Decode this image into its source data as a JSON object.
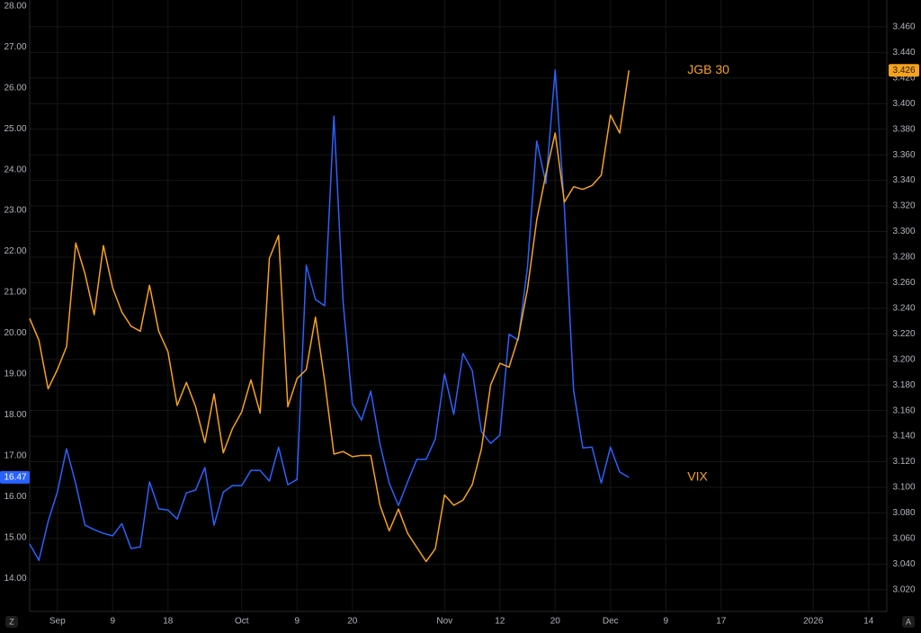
{
  "chart_data": {
    "type": "line",
    "categories": [
      null,
      null,
      null,
      "Sep",
      null,
      null,
      null,
      null,
      null,
      "9",
      null,
      null,
      null,
      null,
      null,
      "18",
      null,
      null,
      null,
      null,
      null,
      null,
      null,
      "Oct",
      null,
      null,
      null,
      null,
      null,
      "9",
      null,
      null,
      null,
      null,
      null,
      "20",
      null,
      null,
      null,
      null,
      null,
      null,
      null,
      null,
      null,
      "Nov",
      null,
      null,
      null,
      null,
      null,
      "12",
      null,
      null,
      null,
      null,
      null,
      "20",
      null,
      null,
      null,
      null,
      null,
      "Dec",
      null,
      null,
      null,
      null,
      null,
      "9",
      null,
      null,
      null,
      null,
      null,
      "17",
      null,
      null,
      null,
      null,
      null,
      null,
      null,
      null,
      null,
      "2026",
      null,
      null,
      null,
      null,
      null,
      "14",
      null,
      null
    ],
    "series": [
      {
        "name": "VIX",
        "color": "#2962ff",
        "axis": "y",
        "values": [
          14.84,
          14.44,
          15.39,
          16.11,
          17.17,
          16.31,
          15.3,
          15.19,
          15.1,
          15.04,
          15.34,
          14.73,
          14.77,
          16.36,
          15.7,
          15.67,
          15.45,
          16.09,
          16.16,
          16.71,
          15.3,
          16.11,
          16.27,
          16.27,
          16.64,
          16.64,
          16.38,
          17.21,
          16.29,
          16.42,
          21.66,
          20.82,
          20.67,
          25.31,
          20.76,
          18.27,
          17.87,
          18.58,
          17.28,
          16.33,
          15.78,
          16.36,
          16.91,
          16.91,
          17.41,
          19.0,
          18.01,
          19.5,
          19.09,
          17.59,
          17.3,
          17.5,
          19.97,
          19.83,
          21.62,
          24.7,
          23.66,
          26.44,
          23.07,
          18.6,
          17.19,
          17.21,
          16.33,
          17.21,
          16.6,
          16.47,
          null,
          null,
          null,
          null,
          null,
          null,
          null,
          null,
          null,
          null,
          null,
          null,
          null,
          null,
          null,
          null,
          null,
          null,
          null,
          null,
          null,
          null,
          null,
          null,
          null,
          null,
          null,
          null
        ]
      },
      {
        "name": "JGB 30",
        "color": "#f7a21b",
        "axis": "y2",
        "values": [
          3.232,
          3.215,
          3.177,
          3.192,
          3.21,
          3.291,
          3.267,
          3.235,
          3.289,
          3.256,
          3.237,
          3.226,
          3.222,
          3.258,
          3.222,
          3.206,
          3.164,
          3.182,
          3.163,
          3.135,
          3.173,
          3.127,
          3.146,
          3.159,
          3.184,
          3.158,
          3.279,
          3.297,
          3.163,
          3.185,
          3.192,
          3.233,
          3.183,
          3.126,
          3.128,
          3.124,
          3.125,
          3.125,
          3.086,
          3.066,
          3.083,
          3.064,
          3.053,
          3.042,
          3.052,
          3.094,
          3.086,
          3.09,
          3.102,
          3.13,
          3.18,
          3.197,
          3.194,
          3.217,
          3.255,
          3.309,
          3.345,
          3.377,
          3.323,
          3.335,
          3.333,
          3.336,
          3.344,
          3.391,
          3.377,
          3.426,
          null,
          null,
          null,
          null,
          null,
          null,
          null,
          null,
          null,
          null,
          null,
          null,
          null,
          null,
          null,
          null,
          null,
          null,
          null,
          null,
          null,
          null,
          null,
          null,
          null,
          null,
          null,
          null
        ]
      }
    ],
    "ylim": [
      13.19,
      28.15
    ],
    "yticks": [
      {
        "value": 14,
        "label": "14.00"
      },
      {
        "value": 15,
        "label": "15.00"
      },
      {
        "value": 16,
        "label": "16.00"
      },
      {
        "value": 17,
        "label": "17.00"
      },
      {
        "value": 18,
        "label": "18.00"
      },
      {
        "value": 19,
        "label": "19.00"
      },
      {
        "value": 20,
        "label": "20.00"
      },
      {
        "value": 21,
        "label": "21.00"
      },
      {
        "value": 22,
        "label": "22.00"
      },
      {
        "value": 23,
        "label": "23.00"
      },
      {
        "value": 24,
        "label": "24.00"
      },
      {
        "value": 25,
        "label": "25.00"
      },
      {
        "value": 26,
        "label": "26.00"
      },
      {
        "value": 27,
        "label": "27.00"
      },
      {
        "value": 28,
        "label": "28.00"
      }
    ],
    "y2lim": [
      3.003,
      3.481
    ],
    "y2ticks": [
      {
        "value": 3.02,
        "label": "3.020"
      },
      {
        "value": 3.04,
        "label": "3.040"
      },
      {
        "value": 3.06,
        "label": "3.060"
      },
      {
        "value": 3.08,
        "label": "3.080"
      },
      {
        "value": 3.1,
        "label": "3.100"
      },
      {
        "value": 3.12,
        "label": "3.120"
      },
      {
        "value": 3.14,
        "label": "3.140"
      },
      {
        "value": 3.16,
        "label": "3.160"
      },
      {
        "value": 3.18,
        "label": "3.180"
      },
      {
        "value": 3.2,
        "label": "3.200"
      },
      {
        "value": 3.22,
        "label": "3.220"
      },
      {
        "value": 3.24,
        "label": "3.240"
      },
      {
        "value": 3.26,
        "label": "3.260"
      },
      {
        "value": 3.28,
        "label": "3.280"
      },
      {
        "value": 3.3,
        "label": "3.300"
      },
      {
        "value": 3.32,
        "label": "3.320"
      },
      {
        "value": 3.34,
        "label": "3.340"
      },
      {
        "value": 3.36,
        "label": "3.360"
      },
      {
        "value": 3.38,
        "label": "3.380"
      },
      {
        "value": 3.4,
        "label": "3.400"
      },
      {
        "value": 3.42,
        "label": "3.420"
      },
      {
        "value": 3.44,
        "label": "3.440"
      },
      {
        "value": 3.46,
        "label": "3.460"
      }
    ],
    "grid": true
  },
  "controls": {
    "left": "Z",
    "right": "A"
  }
}
